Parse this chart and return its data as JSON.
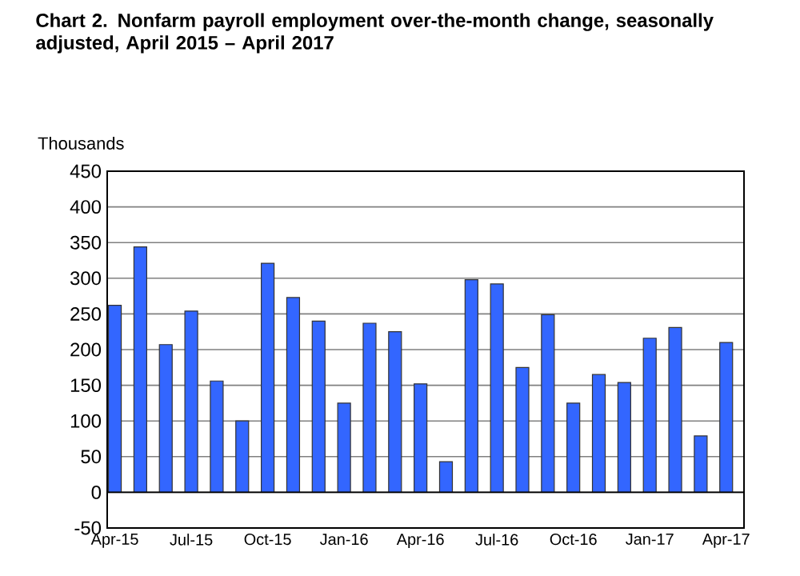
{
  "chart_data": {
    "type": "bar",
    "title": "Chart 2. Nonfarm payroll employment over-the-month change, seasonally adjusted, April 2015 – April 2017",
    "ylabel": "Thousands",
    "categories": [
      "Apr-15",
      null,
      null,
      "Jul-15",
      null,
      null,
      "Oct-15",
      null,
      null,
      "Jan-16",
      null,
      null,
      "Apr-16",
      null,
      null,
      "Jul-16",
      null,
      null,
      "Oct-16",
      null,
      null,
      "Jan-17",
      null,
      null,
      "Apr-17"
    ],
    "values": [
      262,
      344,
      207,
      254,
      156,
      100,
      321,
      273,
      240,
      125,
      237,
      225,
      152,
      43,
      298,
      292,
      175,
      249,
      125,
      165,
      154,
      216,
      231,
      79,
      210
    ],
    "color": "#3366ff",
    "ylim": [
      -50,
      450
    ],
    "yticks": [
      -50,
      0,
      50,
      100,
      150,
      200,
      250,
      300,
      350,
      400,
      450
    ],
    "grid": "y"
  }
}
